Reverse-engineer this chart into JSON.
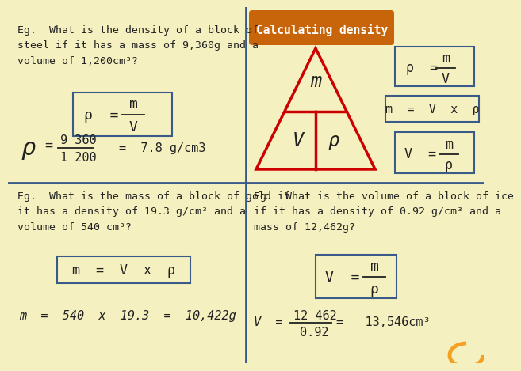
{
  "bg_color": "#f5f0c0",
  "title": "Calculating density",
  "title_bg": "#c8640a",
  "title_color": "#ffffff",
  "grid_line_color": "#3a5a8a",
  "triangle_color": "#cc0000",
  "box_line_color": "#3a5a8a",
  "text_color": "#222222",
  "top_left_question": "Eg.  What is the density of a block of\nsteel if it has a mass of 9,360g and a\nvolume of 1,200cm³?",
  "bottom_left_question": "Eg.  What is the mass of a block of gold if\nit has a density of 19.3 g/cm³ and a\nvolume of 540 cm³?",
  "bottom_left_calc": "m  =  540  x  19.3  =  10,422g",
  "bottom_right_question": "Eg.  What is the volume of a block of ice\nif it has a density of 0.92 g/cm³ and a\nmass of 12,462g?"
}
